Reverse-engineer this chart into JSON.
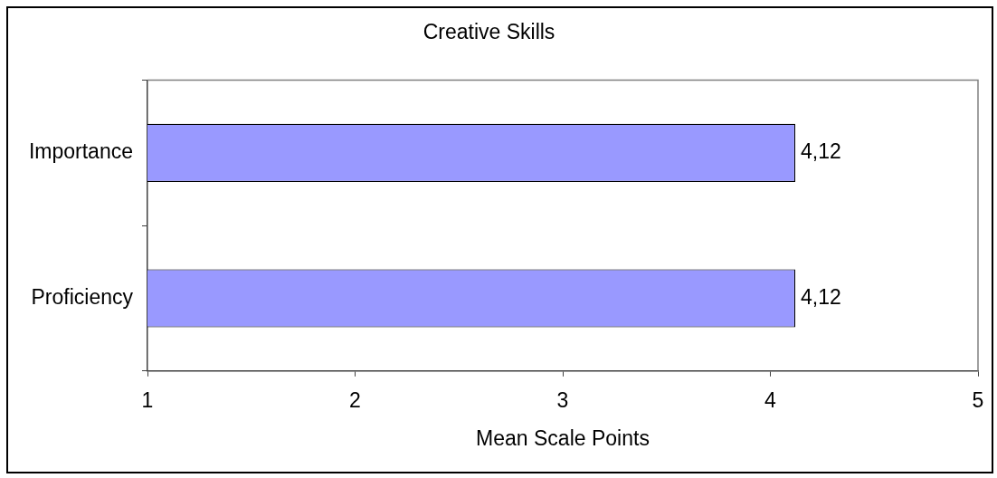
{
  "chart_data": {
    "type": "bar",
    "orientation": "horizontal",
    "title": "Creative Skills",
    "xlabel": "Mean Scale Points",
    "categories": [
      "Importance",
      "Proficiency"
    ],
    "values": [
      4.12,
      4.12
    ],
    "color": "#9999ff",
    "value_labels": [
      "4,12",
      "4,12"
    ],
    "xlim": [
      1,
      5
    ],
    "xticks": [
      1,
      2,
      3,
      4,
      5
    ],
    "grid": false,
    "legend": false
  }
}
